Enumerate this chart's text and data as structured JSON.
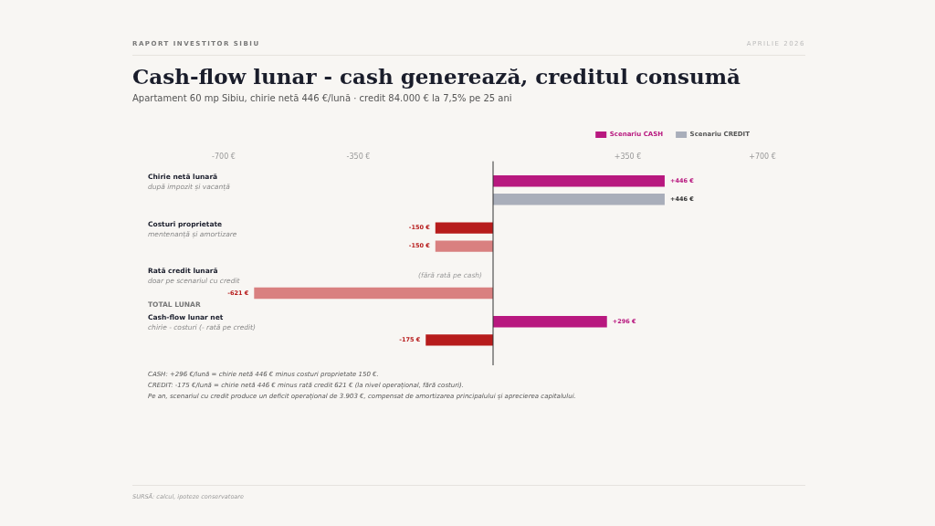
{
  "chart_data": {
    "type": "bar",
    "orientation": "horizontal",
    "title": "Cash-flow lunar - cash generează, creditul consumă",
    "subtitle": "Apartament 60 mp Sibiu, chirie netă 446 €/lună · credit 84.000 € la 7,5% pe 25 ani",
    "categories": [
      "Chirie netă lunară",
      "Costuri proprietate",
      "Rată credit lunară",
      "Cash-flow lunar net"
    ],
    "series": [
      {
        "name": "Scenariu CASH",
        "color": "#b8187f",
        "colors": [
          "#b8187f",
          "#b71c1c",
          "#b71c1c",
          "#b8187f"
        ],
        "values": [
          446,
          -150,
          null,
          296
        ],
        "value_labels": [
          "+446 €",
          "-150 €",
          null,
          "+296 €"
        ]
      },
      {
        "name": "Scenariu CREDIT",
        "color": "#a9aeba",
        "colors": [
          "#a9aeba",
          "#d98080",
          "#d98080",
          "#b71c1c"
        ],
        "values": [
          446,
          -150,
          -621,
          -175
        ],
        "value_labels": [
          "+446 €",
          "-150 €",
          "-621 €",
          "-175 €"
        ]
      }
    ],
    "xlim": [
      -700,
      700
    ],
    "xticks": [
      {
        "value": -700,
        "label": "-700 €"
      },
      {
        "value": -350,
        "label": "-350 €"
      },
      {
        "value": 350,
        "label": "+350 €"
      },
      {
        "value": 700,
        "label": "+700 €"
      }
    ],
    "ref_lines": [
      {
        "axis": "x",
        "value": 0,
        "color": "#333333"
      }
    ],
    "grid": false,
    "legend": "top right",
    "annotations": [
      "RAPORT INVESTITOR SIBIU",
      "APRILIE 2026",
      "TOTAL LUNAR",
      "după impozit și vacanță",
      "mentenanță și amortizare",
      "doar pe scenariul cu credit",
      "chirie - costuri (- rată pe credit)",
      "CASH: +296 €/lună = chirie netă 446 € minus costuri proprietate 150 €.",
      "CREDIT: -175 €/lună = chirie netă 446 € minus rată credit 621 € (la nivel operațional, fără costuri).",
      "Pe an, scenariul cu credit produce un deficit operațional de 3.903 €, compensat de amortizarea principalului și aprecierea capitalului.",
      "SURSĂ: calcul, ipoteze conservatoare",
      {
        "text": "(fără rată pe cash)",
        "x": 0,
        "y": "Rată credit lunară"
      }
    ]
  }
}
